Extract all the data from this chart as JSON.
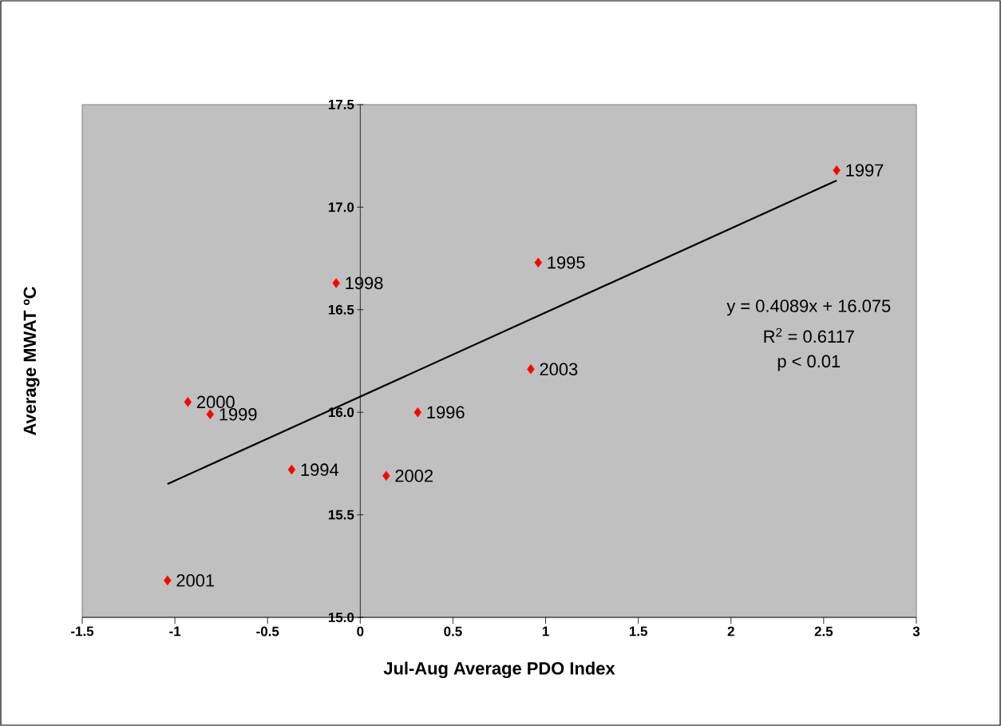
{
  "chart_data": {
    "type": "scatter",
    "xlabel": "Jul-Aug Average PDO Index",
    "ylabel": "Average MWAT ºC",
    "xlim": [
      -1.5,
      3
    ],
    "ylim": [
      15,
      17.5
    ],
    "xticks": [
      -1.5,
      -1,
      -0.5,
      0,
      0.5,
      1,
      1.5,
      2,
      2.5,
      3
    ],
    "yticks": [
      {
        "value": 15,
        "label": "15.0"
      },
      {
        "value": 15.5,
        "label": "15.5"
      },
      {
        "value": 16,
        "label": "16.0"
      },
      {
        "value": 16.5,
        "label": "16.5"
      },
      {
        "value": 17,
        "label": "17.0"
      },
      {
        "value": 17.5,
        "label": "17.5"
      }
    ],
    "annotations": [
      "y = 0.4089x + 16.075",
      "R$^{2}$ = 0.6117",
      "p < 0.01",
      {
        "text": "1997",
        "x": 2.57,
        "y": 17.18
      },
      {
        "text": "1995",
        "x": 0.96,
        "y": 16.73
      },
      {
        "text": "1998",
        "x": -0.13,
        "y": 16.63
      },
      {
        "text": "2003",
        "x": 0.92,
        "y": 16.21
      },
      {
        "text": "2000",
        "x": -0.93,
        "y": 16.05
      },
      {
        "text": "1999",
        "x": -0.81,
        "y": 15.99
      },
      {
        "text": "1996",
        "x": 0.31,
        "y": 16.0
      },
      {
        "text": "1994",
        "x": -0.37,
        "y": 15.72
      },
      {
        "text": "2002",
        "x": 0.14,
        "y": 15.69
      },
      {
        "text": "2001",
        "x": -1.04,
        "y": 15.18
      }
    ],
    "series": [
      {
        "color": "#ff0000",
        "marker": "diamond",
        "x": [
          2.57,
          0.96,
          -0.13,
          0.92,
          -0.93,
          -0.81,
          0.31,
          -0.37,
          0.14,
          -1.04
        ],
        "values": [
          17.18,
          16.73,
          16.63,
          16.21,
          16.05,
          15.99,
          16.0,
          15.72,
          15.69,
          15.18
        ]
      },
      {
        "type": "line",
        "color": "#000000",
        "marker": "none",
        "line_style": "solid",
        "x": [
          -1.04,
          2.57
        ],
        "values": [
          15.65,
          17.13
        ]
      }
    ]
  }
}
